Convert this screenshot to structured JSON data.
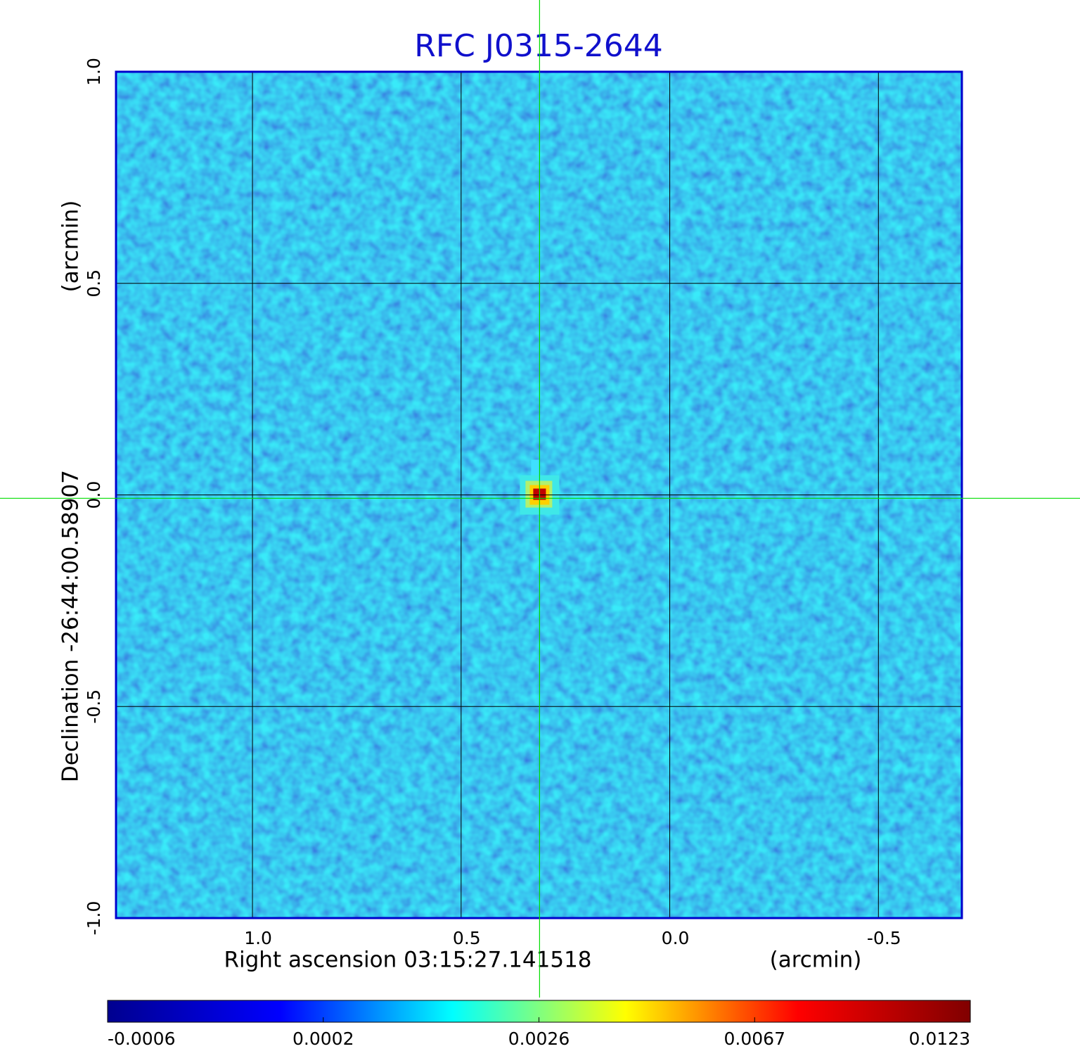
{
  "chart_data": {
    "type": "image",
    "title": "RFC J0315-2644",
    "x_label": "Right ascension  03:15:27.141518",
    "x_unit": "(arcmin)",
    "y_label": "Declination  -26:44:00.58907",
    "y_unit": "(arcmin)",
    "xlim": [
      1.327,
      -0.7
    ],
    "ylim": [
      -1.0,
      1.0
    ],
    "xticks": [
      {
        "value": 1,
        "label": "1.0"
      },
      0.5,
      {
        "value": 0,
        "label": "0.0"
      },
      -0.5
    ],
    "yticks": [
      {
        "value": -1,
        "label": "-1.0"
      },
      -0.5,
      {
        "value": 0,
        "label": "0.0"
      },
      0.5,
      {
        "value": 1,
        "label": "1.0"
      }
    ],
    "grid": true,
    "crosshair": {
      "x": 0.312,
      "y": -0.008,
      "color": "#00dd00"
    },
    "source": {
      "x": 0.312,
      "y": 0.0
    },
    "colorbar": {
      "ticks": [
        -0.0006,
        0.0002,
        0.0026,
        0.0067,
        0.0123
      ],
      "colors": [
        "#00008f",
        "#0000ff",
        "#00ffff",
        "#ffff00",
        "#ff0000",
        "#800000"
      ]
    }
  }
}
